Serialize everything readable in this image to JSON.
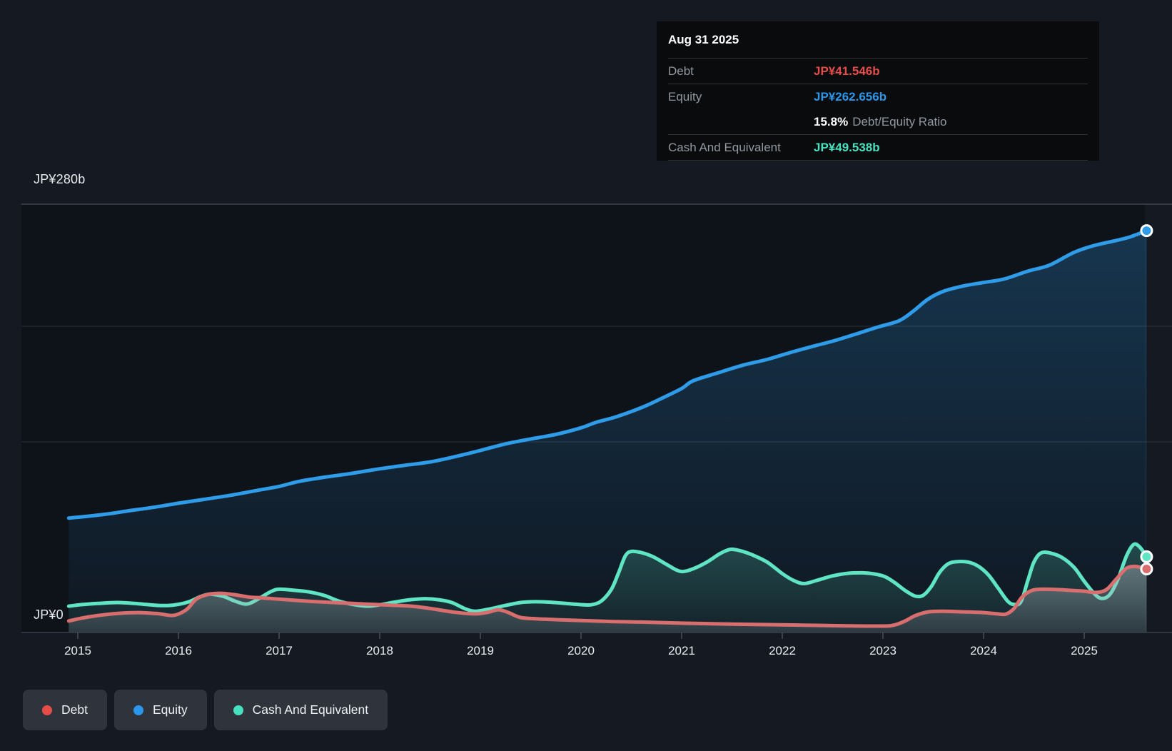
{
  "colors": {
    "page_bg": "#151a22",
    "plot_bg": "#0e1219",
    "debt": "#e54d49",
    "equity": "#2a97ea",
    "cash": "#47e1bf",
    "grid_strong": "#3e444d",
    "grid_faint": "#272d36",
    "axis_line": "#3a4049",
    "tick": "#4a505a",
    "label_bright": "#e9ebee",
    "label_gray": "#9298a0",
    "tooltip_bg": "#0a0b0d",
    "tooltip_divider": "#2f3033",
    "legend_bg": "#2f343c"
  },
  "tooltip": {
    "date": "Aug 31 2025",
    "debt_label": "Debt",
    "debt_value": "JP¥41.546b",
    "equity_label": "Equity",
    "equity_value": "JP¥262.656b",
    "ratio_value": "15.8%",
    "ratio_label": "Debt/Equity Ratio",
    "cash_label": "Cash And Equivalent",
    "cash_value": "JP¥49.538b"
  },
  "legend": {
    "debt": "Debt",
    "equity": "Equity",
    "cash": "Cash And Equivalent"
  },
  "chart_data": {
    "type": "area",
    "ylim": [
      0,
      280
    ],
    "y_axis_label_top": "JP¥280b",
    "y_axis_label_bottom": "JP¥0",
    "x_labels": [
      "2015",
      "2016",
      "2017",
      "2018",
      "2019",
      "2020",
      "2021",
      "2022",
      "2023",
      "2024",
      "2025"
    ],
    "x_unit": "year",
    "x_end_date": "Aug 31 2025",
    "grid": "horizontal",
    "legend_position": "bottom-left",
    "values_unit": "JP¥ billions",
    "series": [
      {
        "name": "Debt",
        "color": "#d96e6e",
        "end_value": 41.546,
        "points": [
          [
            2014.91,
            7.5
          ],
          [
            2015.05,
            9.5
          ],
          [
            2015.2,
            11.1
          ],
          [
            2015.4,
            12.5
          ],
          [
            2015.6,
            13.0
          ],
          [
            2015.8,
            12.3
          ],
          [
            2015.95,
            11.2
          ],
          [
            2016.08,
            15.0
          ],
          [
            2016.18,
            22.0
          ],
          [
            2016.3,
            25.0
          ],
          [
            2016.42,
            25.6
          ],
          [
            2016.55,
            24.8
          ],
          [
            2016.7,
            23.2
          ],
          [
            2016.85,
            22.6
          ],
          [
            2017.0,
            21.8
          ],
          [
            2017.3,
            20.4
          ],
          [
            2017.6,
            19.4
          ],
          [
            2017.85,
            18.6
          ],
          [
            2018.1,
            17.9
          ],
          [
            2018.35,
            17.0
          ],
          [
            2018.55,
            15.2
          ],
          [
            2018.75,
            13.2
          ],
          [
            2018.95,
            12.2
          ],
          [
            2019.08,
            13.3
          ],
          [
            2019.18,
            14.9
          ],
          [
            2019.28,
            13.0
          ],
          [
            2019.4,
            9.8
          ],
          [
            2019.55,
            9.0
          ],
          [
            2019.75,
            8.4
          ],
          [
            2020.0,
            7.8
          ],
          [
            2020.3,
            7.2
          ],
          [
            2020.6,
            6.8
          ],
          [
            2021.0,
            6.1
          ],
          [
            2021.4,
            5.6
          ],
          [
            2021.8,
            5.2
          ],
          [
            2022.2,
            4.8
          ],
          [
            2022.6,
            4.4
          ],
          [
            2023.0,
            4.2
          ],
          [
            2023.12,
            5.0
          ],
          [
            2023.22,
            7.5
          ],
          [
            2023.32,
            11.0
          ],
          [
            2023.45,
            13.5
          ],
          [
            2023.6,
            13.9
          ],
          [
            2023.8,
            13.5
          ],
          [
            2024.0,
            13.0
          ],
          [
            2024.12,
            12.3
          ],
          [
            2024.22,
            12.0
          ],
          [
            2024.3,
            15.5
          ],
          [
            2024.38,
            23.0
          ],
          [
            2024.48,
            27.5
          ],
          [
            2024.6,
            28.3
          ],
          [
            2024.75,
            28.0
          ],
          [
            2024.9,
            27.4
          ],
          [
            2025.0,
            27.0
          ],
          [
            2025.12,
            26.2
          ],
          [
            2025.22,
            28.0
          ],
          [
            2025.32,
            35.0
          ],
          [
            2025.42,
            42.0
          ],
          [
            2025.5,
            43.2
          ],
          [
            2025.56,
            42.5
          ],
          [
            2025.62,
            41.546
          ]
        ]
      },
      {
        "name": "Equity",
        "color": "#2e9ce8",
        "end_value": 262.656,
        "points": [
          [
            2014.91,
            74.8
          ],
          [
            2015.1,
            76.0
          ],
          [
            2015.3,
            77.5
          ],
          [
            2015.5,
            79.5
          ],
          [
            2015.75,
            81.8
          ],
          [
            2016.0,
            84.5
          ],
          [
            2016.25,
            87.0
          ],
          [
            2016.5,
            89.5
          ],
          [
            2016.75,
            92.5
          ],
          [
            2017.0,
            95.5
          ],
          [
            2017.2,
            98.8
          ],
          [
            2017.45,
            101.5
          ],
          [
            2017.7,
            103.8
          ],
          [
            2018.0,
            107.0
          ],
          [
            2018.25,
            109.3
          ],
          [
            2018.5,
            111.5
          ],
          [
            2018.75,
            115.0
          ],
          [
            2019.0,
            119.0
          ],
          [
            2019.25,
            123.3
          ],
          [
            2019.5,
            126.5
          ],
          [
            2019.75,
            129.5
          ],
          [
            2020.0,
            133.8
          ],
          [
            2020.15,
            137.4
          ],
          [
            2020.35,
            141.0
          ],
          [
            2020.6,
            147.0
          ],
          [
            2020.8,
            153.0
          ],
          [
            2021.0,
            159.5
          ],
          [
            2021.11,
            164.4
          ],
          [
            2021.35,
            169.5
          ],
          [
            2021.6,
            174.6
          ],
          [
            2021.85,
            178.5
          ],
          [
            2022.1,
            183.4
          ],
          [
            2022.3,
            187.0
          ],
          [
            2022.52,
            190.8
          ],
          [
            2022.75,
            195.5
          ],
          [
            2022.95,
            199.7
          ],
          [
            2023.16,
            203.8
          ],
          [
            2023.3,
            210.0
          ],
          [
            2023.45,
            218.0
          ],
          [
            2023.6,
            223.0
          ],
          [
            2023.8,
            226.5
          ],
          [
            2024.0,
            228.8
          ],
          [
            2024.2,
            231.0
          ],
          [
            2024.45,
            236.4
          ],
          [
            2024.65,
            240.0
          ],
          [
            2024.9,
            248.5
          ],
          [
            2025.1,
            253.0
          ],
          [
            2025.3,
            256.0
          ],
          [
            2025.45,
            258.5
          ],
          [
            2025.62,
            262.656
          ]
        ]
      },
      {
        "name": "Cash And Equivalent",
        "color": "#5fe5c3",
        "end_value": 49.538,
        "points": [
          [
            2014.91,
            17.2
          ],
          [
            2015.05,
            18.3
          ],
          [
            2015.2,
            19.0
          ],
          [
            2015.4,
            19.6
          ],
          [
            2015.6,
            18.8
          ],
          [
            2015.8,
            17.7
          ],
          [
            2015.95,
            17.9
          ],
          [
            2016.1,
            20.0
          ],
          [
            2016.22,
            23.5
          ],
          [
            2016.32,
            25.1
          ],
          [
            2016.45,
            23.5
          ],
          [
            2016.55,
            20.8
          ],
          [
            2016.65,
            18.7
          ],
          [
            2016.72,
            19.3
          ],
          [
            2016.82,
            23.0
          ],
          [
            2016.92,
            26.8
          ],
          [
            2017.0,
            28.3
          ],
          [
            2017.15,
            27.6
          ],
          [
            2017.3,
            26.5
          ],
          [
            2017.45,
            24.2
          ],
          [
            2017.6,
            20.4
          ],
          [
            2017.75,
            18.2
          ],
          [
            2017.88,
            17.2
          ],
          [
            2018.0,
            18.1
          ],
          [
            2018.15,
            19.9
          ],
          [
            2018.3,
            21.4
          ],
          [
            2018.45,
            22.1
          ],
          [
            2018.6,
            21.3
          ],
          [
            2018.72,
            19.5
          ],
          [
            2018.85,
            15.5
          ],
          [
            2018.95,
            13.9
          ],
          [
            2019.1,
            15.5
          ],
          [
            2019.25,
            17.7
          ],
          [
            2019.4,
            19.6
          ],
          [
            2019.55,
            20.1
          ],
          [
            2019.7,
            19.8
          ],
          [
            2019.85,
            19.0
          ],
          [
            2020.0,
            18.2
          ],
          [
            2020.1,
            18.1
          ],
          [
            2020.2,
            20.5
          ],
          [
            2020.3,
            28.0
          ],
          [
            2020.37,
            38.5
          ],
          [
            2020.44,
            50.0
          ],
          [
            2020.5,
            53.0
          ],
          [
            2020.6,
            52.2
          ],
          [
            2020.72,
            49.4
          ],
          [
            2020.85,
            44.5
          ],
          [
            2020.95,
            40.8
          ],
          [
            2021.02,
            39.9
          ],
          [
            2021.12,
            41.8
          ],
          [
            2021.25,
            46.0
          ],
          [
            2021.38,
            51.5
          ],
          [
            2021.48,
            54.3
          ],
          [
            2021.58,
            53.5
          ],
          [
            2021.7,
            50.8
          ],
          [
            2021.85,
            46.0
          ],
          [
            2022.0,
            38.5
          ],
          [
            2022.12,
            33.8
          ],
          [
            2022.22,
            32.0
          ],
          [
            2022.35,
            34.2
          ],
          [
            2022.5,
            37.0
          ],
          [
            2022.65,
            38.7
          ],
          [
            2022.8,
            39.0
          ],
          [
            2022.92,
            38.2
          ],
          [
            2023.02,
            36.5
          ],
          [
            2023.12,
            32.5
          ],
          [
            2023.22,
            27.5
          ],
          [
            2023.32,
            23.8
          ],
          [
            2023.4,
            24.3
          ],
          [
            2023.48,
            30.0
          ],
          [
            2023.56,
            39.0
          ],
          [
            2023.64,
            44.5
          ],
          [
            2023.72,
            46.2
          ],
          [
            2023.85,
            46.0
          ],
          [
            2023.95,
            43.2
          ],
          [
            2024.05,
            37.5
          ],
          [
            2024.15,
            28.5
          ],
          [
            2024.24,
            20.5
          ],
          [
            2024.3,
            18.4
          ],
          [
            2024.37,
            20.0
          ],
          [
            2024.44,
            34.0
          ],
          [
            2024.5,
            46.0
          ],
          [
            2024.57,
            52.0
          ],
          [
            2024.67,
            51.8
          ],
          [
            2024.78,
            49.0
          ],
          [
            2024.9,
            42.5
          ],
          [
            2025.0,
            33.5
          ],
          [
            2025.1,
            25.5
          ],
          [
            2025.17,
            22.3
          ],
          [
            2025.25,
            24.5
          ],
          [
            2025.33,
            34.0
          ],
          [
            2025.42,
            50.0
          ],
          [
            2025.49,
            57.5
          ],
          [
            2025.55,
            56.0
          ],
          [
            2025.62,
            49.538
          ]
        ]
      }
    ]
  }
}
